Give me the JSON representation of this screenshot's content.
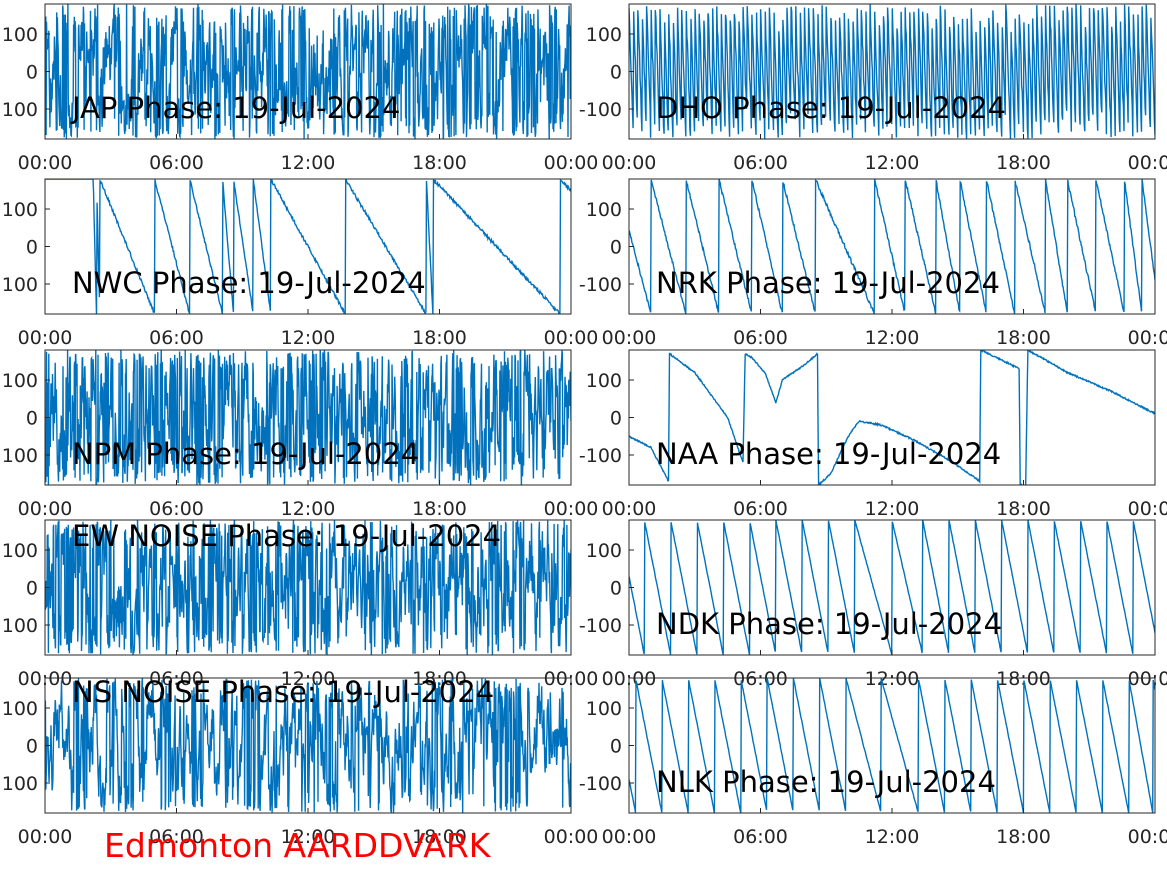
{
  "figure": {
    "footer_label": "Edmonton AARDDVARK",
    "footer_color": "#ff0000",
    "line_color": "#0072bd",
    "axis_color": "#262626"
  },
  "chart_data": [
    {
      "type": "line",
      "id": "jap",
      "title": "JAP Phase: 19-Jul-2024",
      "column": "left",
      "row": 0,
      "x_ticks": [
        "00:00",
        "06:00",
        "12:00",
        "18:00",
        "00:00"
      ],
      "y_ticks": [
        "100",
        "0",
        "100"
      ],
      "ylim": [
        -180,
        180
      ],
      "xlim_hours": [
        0,
        24
      ],
      "grid": false,
      "signal": {
        "kind": "noise",
        "wraps_per_day": 0,
        "noise_deg": 200,
        "seed": 11
      }
    },
    {
      "type": "line",
      "id": "dho",
      "title": "DHO Phase: 19-Jul-2024",
      "column": "right",
      "row": 0,
      "x_ticks": [
        "00:00",
        "06:00",
        "12:00",
        "18:00",
        "00:00"
      ],
      "y_ticks": [
        "100",
        "0",
        "-100"
      ],
      "ylim": [
        -180,
        180
      ],
      "xlim_hours": [
        0,
        24
      ],
      "grid": false,
      "signal": {
        "kind": "dense-ramp",
        "wraps_per_day": 120,
        "noise_deg": 40,
        "seed": 12
      }
    },
    {
      "type": "line",
      "id": "nwc",
      "title": "NWC Phase: 19-Jul-2024",
      "column": "left",
      "row": 1,
      "x_ticks": [
        "00:00",
        "06:00",
        "12:00",
        "18:00",
        "00:00"
      ],
      "y_ticks": [
        "100",
        "0",
        "100"
      ],
      "ylim": [
        -180,
        180
      ],
      "xlim_hours": [
        0,
        24
      ],
      "grid": false,
      "signal": {
        "kind": "ramp",
        "direction": -1,
        "wrap_hours": [
          2.35,
          2.5,
          5.0,
          6.6,
          8.1,
          8.6,
          9.5,
          10.3,
          13.7,
          17.4,
          17.7,
          23.5
        ],
        "noise_deg": 8,
        "seed": 13
      }
    },
    {
      "type": "line",
      "id": "nrk",
      "title": "NRK Phase: 19-Jul-2024",
      "column": "right",
      "row": 1,
      "x_ticks": [
        "00:00",
        "06:00",
        "12:00",
        "18:00",
        "00:00"
      ],
      "y_ticks": [
        "100",
        "0",
        "-100"
      ],
      "ylim": [
        -180,
        180
      ],
      "xlim_hours": [
        0,
        24
      ],
      "grid": false,
      "signal": {
        "kind": "ramp",
        "direction": -1,
        "wrap_hours": [
          1.0,
          2.6,
          4.1,
          5.6,
          7.0,
          8.5,
          11.2,
          12.6,
          14.0,
          15.1,
          16.3,
          17.6,
          19.0,
          20.0,
          21.3,
          22.6,
          23.4
        ],
        "noise_deg": 10,
        "seed": 14
      }
    },
    {
      "type": "line",
      "id": "npm",
      "title": "NPM Phase: 19-Jul-2024",
      "column": "left",
      "row": 2,
      "x_ticks": [
        "00:00",
        "06:00",
        "12:00",
        "18:00",
        "00:00"
      ],
      "y_ticks": [
        "100",
        "0",
        "100"
      ],
      "ylim": [
        -180,
        180
      ],
      "xlim_hours": [
        0,
        24
      ],
      "grid": false,
      "signal": {
        "kind": "noise",
        "wraps_per_day": 0,
        "noise_deg": 220,
        "seed": 15
      }
    },
    {
      "type": "line",
      "id": "naa",
      "title": "NAA Phase: 19-Jul-2024",
      "column": "right",
      "row": 2,
      "x_ticks": [
        "00:00",
        "06:00",
        "12:00",
        "18:00",
        "00:00"
      ],
      "y_ticks": [
        "100",
        "0",
        "-100"
      ],
      "ylim": [
        -180,
        180
      ],
      "xlim_hours": [
        0,
        24
      ],
      "grid": false,
      "signal": {
        "kind": "points",
        "points": [
          [
            0,
            -50
          ],
          [
            1.0,
            -80
          ],
          [
            1.8,
            -170
          ],
          [
            1.85,
            170
          ],
          [
            3.0,
            120
          ],
          [
            4.5,
            0
          ],
          [
            5.2,
            -120
          ],
          [
            5.3,
            170
          ],
          [
            5.6,
            160
          ],
          [
            6.2,
            120
          ],
          [
            6.7,
            40
          ],
          [
            7.0,
            100
          ],
          [
            8.0,
            140
          ],
          [
            8.6,
            170
          ],
          [
            8.65,
            -180
          ],
          [
            9.2,
            -150
          ],
          [
            10.0,
            -50
          ],
          [
            10.5,
            -10
          ],
          [
            11.5,
            -20
          ],
          [
            13.0,
            -60
          ],
          [
            14.8,
            -120
          ],
          [
            16.0,
            -170
          ],
          [
            16.05,
            180
          ],
          [
            17.8,
            130
          ],
          [
            17.85,
            -180
          ],
          [
            18.1,
            -180
          ],
          [
            18.2,
            180
          ],
          [
            20.0,
            120
          ],
          [
            22.0,
            70
          ],
          [
            24.0,
            10
          ]
        ],
        "noise_deg": 4,
        "seed": 16
      }
    },
    {
      "type": "line",
      "id": "ew-noise",
      "title": "EW NOISE Phase: 19-Jul-2024",
      "column": "left",
      "row": 3,
      "x_ticks": [
        "00:00",
        "06:00",
        "12:00",
        "18:00",
        "00:00"
      ],
      "y_ticks": [
        "100",
        "0",
        "100"
      ],
      "ylim": [
        -180,
        180
      ],
      "xlim_hours": [
        0,
        24
      ],
      "grid": false,
      "signal": {
        "kind": "noise",
        "wraps_per_day": 0,
        "noise_deg": 200,
        "seed": 17
      }
    },
    {
      "type": "line",
      "id": "ndk",
      "title": "NDK Phase: 19-Jul-2024",
      "column": "right",
      "row": 3,
      "x_ticks": [
        "00:00",
        "06:00",
        "12:00",
        "18:00",
        "00:00"
      ],
      "y_ticks": [
        "100",
        "0",
        "-100"
      ],
      "ylim": [
        -180,
        180
      ],
      "xlim_hours": [
        0,
        24
      ],
      "grid": false,
      "signal": {
        "kind": "ramp",
        "direction": -1,
        "wrap_hours": [
          0.7,
          1.9,
          3.1,
          4.3,
          5.5,
          6.7,
          7.9,
          9.1,
          10.3,
          12.0,
          13.4,
          14.6,
          15.8,
          17.0,
          18.2,
          19.4,
          20.6,
          21.8,
          23.0
        ],
        "noise_deg": 3,
        "seed": 18
      }
    },
    {
      "type": "line",
      "id": "ns-noise",
      "title": "NS NOISE Phase: 19-Jul-2024",
      "column": "left",
      "row": 4,
      "x_ticks": [
        "00:00",
        "06:00",
        "12:00",
        "18:00",
        "00:00"
      ],
      "y_ticks": [
        "100",
        "0",
        "100"
      ],
      "ylim": [
        -180,
        180
      ],
      "xlim_hours": [
        0,
        24
      ],
      "grid": false,
      "signal": {
        "kind": "noise",
        "wraps_per_day": 0,
        "noise_deg": 160,
        "seed": 19
      }
    },
    {
      "type": "line",
      "id": "nlk",
      "title": "NLK Phase: 19-Jul-2024",
      "column": "right",
      "row": 4,
      "x_ticks": [
        "00:00",
        "06:00",
        "12:00",
        "18:00",
        "00:00"
      ],
      "y_ticks": [
        "100",
        "0",
        "-100"
      ],
      "ylim": [
        -180,
        180
      ],
      "xlim_hours": [
        0,
        24
      ],
      "grid": false,
      "signal": {
        "kind": "ramp",
        "direction": -1,
        "wrap_hours": [
          0.3,
          1.5,
          2.7,
          3.9,
          5.1,
          6.3,
          7.5,
          8.7,
          9.9,
          11.5,
          13.2,
          14.4,
          15.6,
          16.8,
          18.0,
          19.2,
          20.4,
          21.6,
          22.8,
          23.9
        ],
        "noise_deg": 3,
        "seed": 20
      }
    }
  ]
}
